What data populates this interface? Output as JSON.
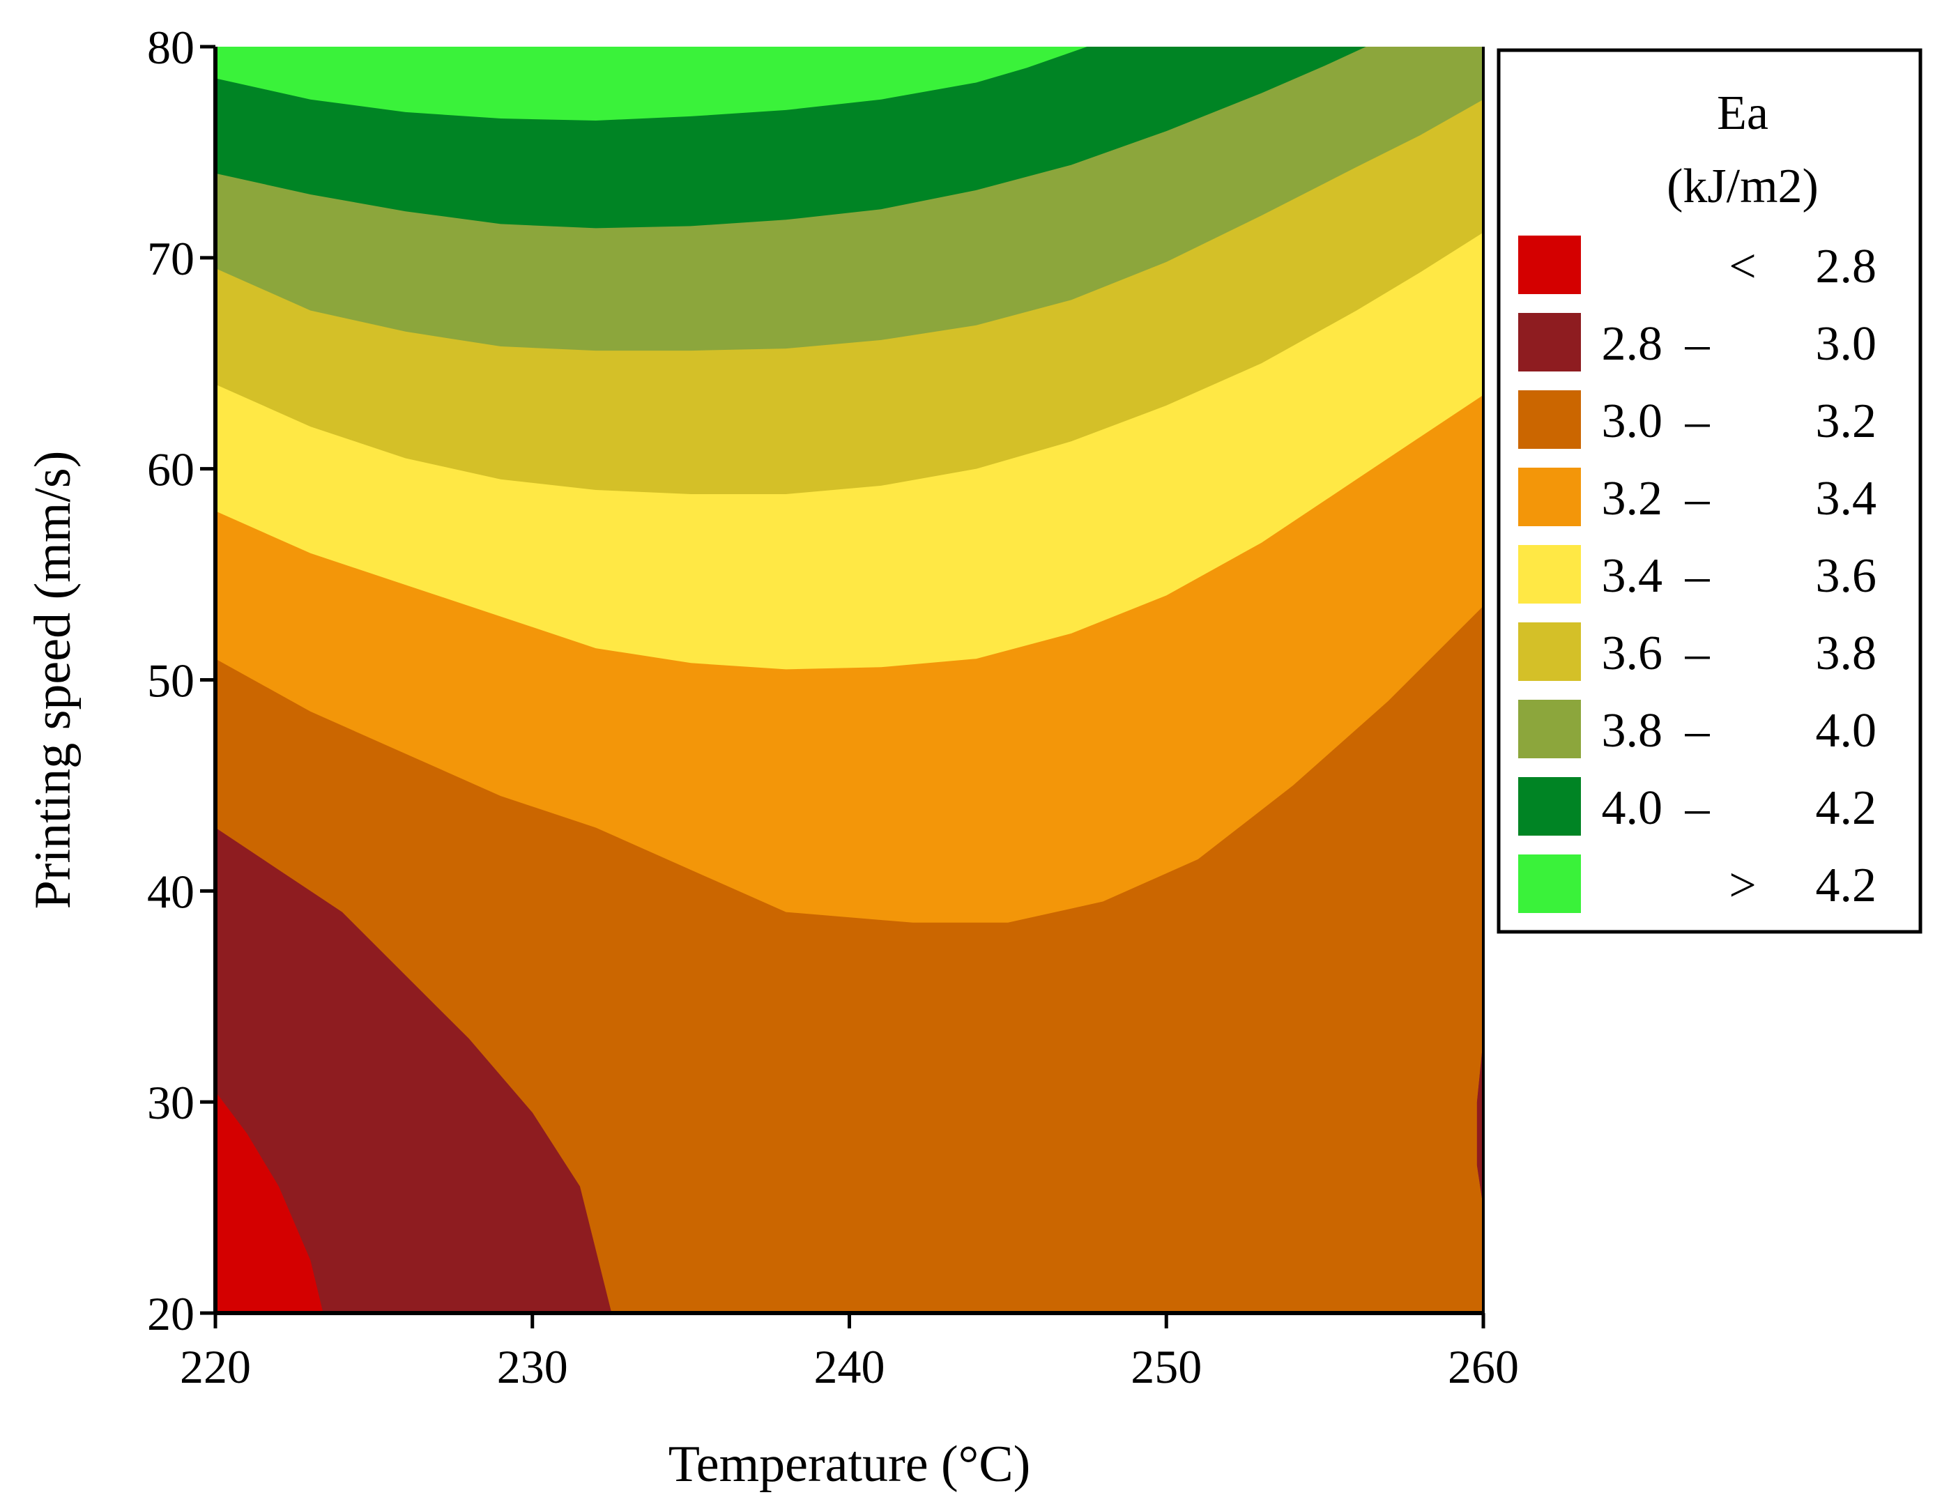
{
  "chart_data": {
    "type": "contour",
    "title": "",
    "xlabel": "Temperature (°C)",
    "ylabel": "Printing speed (mm/s)",
    "xlim": [
      220,
      260
    ],
    "ylim": [
      20,
      80
    ],
    "xticks": [
      "220",
      "230",
      "240",
      "250",
      "260"
    ],
    "yticks": [
      "20",
      "30",
      "40",
      "50",
      "60",
      "70",
      "80"
    ],
    "x_tick_values": [
      220,
      230,
      240,
      250,
      260
    ],
    "y_tick_values": [
      20,
      30,
      40,
      50,
      60,
      70,
      80
    ],
    "grid": false,
    "legend": {
      "title": "Ea",
      "unit": "(kJ/m2)",
      "placement": "right",
      "bins": [
        {
          "low": "",
          "sep": "<",
          "high": "2.8",
          "color": "#d40000"
        },
        {
          "low": "2.8",
          "sep": "–",
          "high": "3.0",
          "color": "#8e1c20"
        },
        {
          "low": "3.0",
          "sep": "–",
          "high": "3.2",
          "color": "#cb6600"
        },
        {
          "low": "3.2",
          "sep": "–",
          "high": "3.4",
          "color": "#f39609"
        },
        {
          "low": "3.4",
          "sep": "–",
          "high": "3.6",
          "color": "#ffe845"
        },
        {
          "low": "3.6",
          "sep": "–",
          "high": "3.8",
          "color": "#d4c028"
        },
        {
          "low": "3.8",
          "sep": "–",
          "high": "4.0",
          "color": "#8ca63c"
        },
        {
          "low": "4.0",
          "sep": "–",
          "high": "4.2",
          "color": "#008424"
        },
        {
          "low": "",
          "sep": ">",
          "high": "4.2",
          "color": "#3af23a"
        }
      ]
    },
    "contour_boundaries": [
      {
        "lower_color": "#d40000",
        "upper_color": "#8e1c20",
        "boundary": [
          [
            220,
            30.5
          ],
          [
            221,
            28.5
          ],
          [
            222,
            26
          ],
          [
            223,
            22.5
          ],
          [
            223.4,
            20
          ]
        ]
      },
      {
        "lower_color": "#8e1c20",
        "upper_color": "#cb6600",
        "boundary": [
          [
            220,
            43
          ],
          [
            222,
            41
          ],
          [
            224,
            39
          ],
          [
            226,
            36
          ],
          [
            228,
            33
          ],
          [
            230,
            29.5
          ],
          [
            231.5,
            26
          ],
          [
            232.5,
            20
          ]
        ]
      },
      {
        "lower_color": "#8e1c20",
        "upper_color": "#cb6600",
        "side": "right-notch",
        "boundary": [
          [
            260,
            33
          ],
          [
            259.8,
            30
          ],
          [
            259.8,
            27
          ],
          [
            260,
            25
          ]
        ]
      },
      {
        "lower_color": "#cb6600",
        "upper_color": "#f39609",
        "boundary": [
          [
            220,
            51
          ],
          [
            223,
            48.5
          ],
          [
            226,
            46.5
          ],
          [
            229,
            44.5
          ],
          [
            232,
            43
          ],
          [
            235,
            41
          ],
          [
            238,
            39
          ],
          [
            242,
            38.5
          ],
          [
            245,
            38.5
          ],
          [
            248,
            39.5
          ],
          [
            251,
            41.5
          ],
          [
            254,
            45
          ],
          [
            257,
            49
          ],
          [
            260,
            53.5
          ]
        ]
      },
      {
        "lower_color": "#f39609",
        "upper_color": "#ffe845",
        "boundary": [
          [
            220,
            58
          ],
          [
            223,
            56
          ],
          [
            226,
            54.5
          ],
          [
            229,
            53
          ],
          [
            232,
            51.5
          ],
          [
            235,
            50.8
          ],
          [
            238,
            50.5
          ],
          [
            241,
            50.6
          ],
          [
            244,
            51
          ],
          [
            247,
            52.2
          ],
          [
            250,
            54
          ],
          [
            253,
            56.5
          ],
          [
            256,
            59.5
          ],
          [
            258,
            61.5
          ],
          [
            260,
            63.5
          ]
        ]
      },
      {
        "lower_color": "#ffe845",
        "upper_color": "#d4c028",
        "boundary": [
          [
            220,
            64
          ],
          [
            223,
            62
          ],
          [
            226,
            60.5
          ],
          [
            229,
            59.5
          ],
          [
            232,
            59
          ],
          [
            235,
            58.8
          ],
          [
            238,
            58.8
          ],
          [
            241,
            59.2
          ],
          [
            244,
            60
          ],
          [
            247,
            61.3
          ],
          [
            250,
            63
          ],
          [
            253,
            65
          ],
          [
            256,
            67.5
          ],
          [
            258,
            69.3
          ],
          [
            260,
            71.2
          ]
        ]
      },
      {
        "lower_color": "#d4c028",
        "upper_color": "#8ca63c",
        "boundary": [
          [
            220,
            69.5
          ],
          [
            223,
            67.5
          ],
          [
            226,
            66.5
          ],
          [
            229,
            65.8
          ],
          [
            232,
            65.6
          ],
          [
            235,
            65.6
          ],
          [
            238,
            65.7
          ],
          [
            241,
            66.1
          ],
          [
            244,
            66.8
          ],
          [
            247,
            68
          ],
          [
            250,
            69.8
          ],
          [
            253,
            72
          ],
          [
            256,
            74.3
          ],
          [
            258,
            75.8
          ],
          [
            260,
            77.5
          ]
        ]
      },
      {
        "lower_color": "#8ca63c",
        "upper_color": "#008424",
        "boundary": [
          [
            220,
            74
          ],
          [
            223,
            73
          ],
          [
            226,
            72.2
          ],
          [
            229,
            71.6
          ],
          [
            232,
            71.4
          ],
          [
            235,
            71.5
          ],
          [
            238,
            71.8
          ],
          [
            241,
            72.3
          ],
          [
            244,
            73.2
          ],
          [
            247,
            74.4
          ],
          [
            250,
            76
          ],
          [
            253,
            77.8
          ],
          [
            255,
            79.1
          ],
          [
            256.3,
            80
          ]
        ]
      },
      {
        "lower_color": "#008424",
        "upper_color": "#3af23a",
        "boundary": [
          [
            220,
            78.5
          ],
          [
            223,
            77.5
          ],
          [
            226,
            76.9
          ],
          [
            229,
            76.6
          ],
          [
            232,
            76.5
          ],
          [
            235,
            76.7
          ],
          [
            238,
            77
          ],
          [
            241,
            77.5
          ],
          [
            244,
            78.3
          ],
          [
            245.6,
            79
          ],
          [
            247.5,
            80
          ]
        ]
      }
    ]
  }
}
